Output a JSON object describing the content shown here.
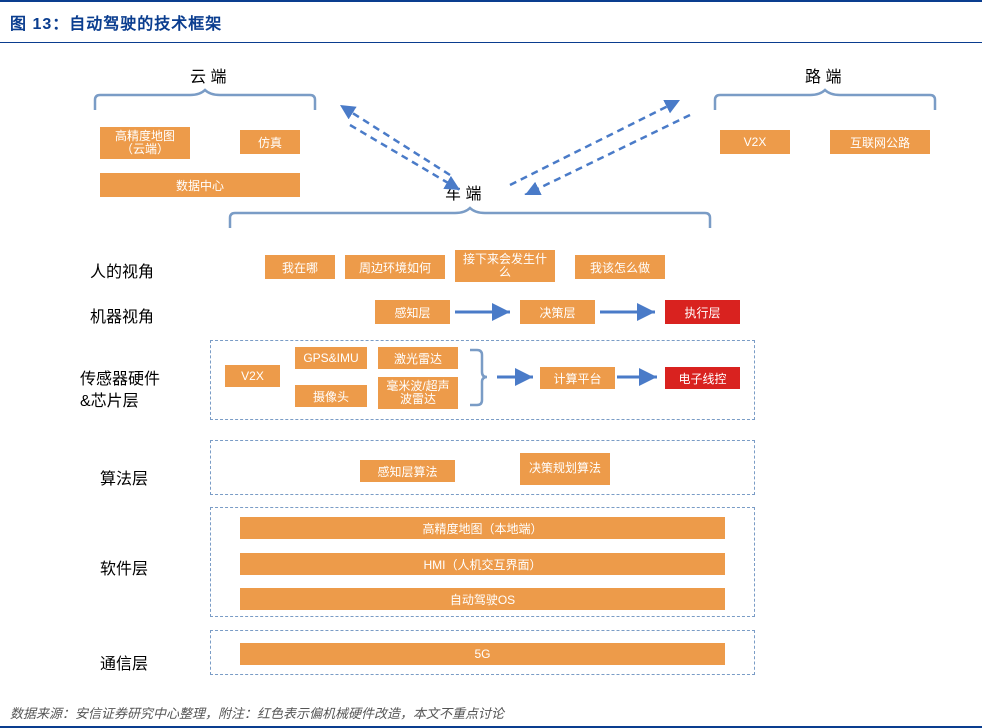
{
  "title": "图 13：自动驾驶的技术框架",
  "footer": "数据来源：安信证券研究中心整理，附注：红色表示偏机械硬件改造，本文不重点讨论",
  "colors": {
    "orange": "#ed9b4a",
    "red": "#d9221f",
    "navy": "#0a3d8f",
    "dash": "#4a7bc8",
    "bracket": "#7a9cc6"
  },
  "top_labels": {
    "cloud": "云 端",
    "vehicle": "车 端",
    "road": "路 端"
  },
  "row_labels": {
    "human": "人的视角",
    "machine": "机器视角",
    "sensor1": "传感器硬件",
    "sensor2": "&芯片层",
    "algo": "算法层",
    "software": "软件层",
    "comm": "通信层"
  },
  "cloud_boxes": {
    "hdmap": "高精度地图\n（云端）",
    "sim": "仿真",
    "dc": "数据中心"
  },
  "road_boxes": {
    "v2x": "V2X",
    "highway": "互联网公路"
  },
  "human_row": {
    "where": "我在哪",
    "env": "周边环境如何",
    "next": "接下来会发生什么",
    "how": "我该怎么做"
  },
  "machine_row": {
    "perceive": "感知层",
    "decide": "决策层",
    "execute": "执行层"
  },
  "sensor_row": {
    "v2x": "V2X",
    "gps": "GPS&IMU",
    "camera": "摄像头",
    "lidar": "激光雷达",
    "mmw": "毫米波/超声波雷达",
    "compute": "计算平台",
    "ewire": "电子线控"
  },
  "algo_row": {
    "perceive": "感知层算法",
    "decide": "决策规划算法"
  },
  "software_row": {
    "hdmap": "高精度地图（本地端）",
    "hmi": "HMI（人机交互界面）",
    "os": "自动驾驶OS"
  },
  "comm_row": {
    "fiveg": "5G"
  }
}
